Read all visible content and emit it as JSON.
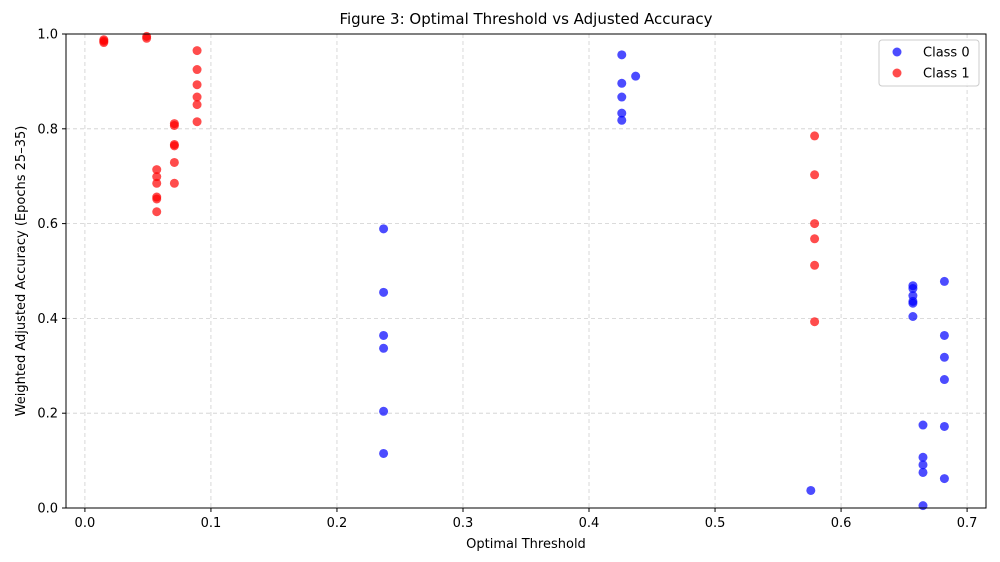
{
  "chart_data": {
    "type": "scatter",
    "title": "Figure 3: Optimal Threshold vs Adjusted Accuracy",
    "xlabel": "Optimal Threshold",
    "ylabel": "Weighted Adjusted Accuracy (Epochs 25–35)",
    "xlim": [
      -0.015,
      0.715
    ],
    "ylim": [
      0.0,
      1.0
    ],
    "xticks": [
      0.0,
      0.1,
      0.2,
      0.3,
      0.4,
      0.5,
      0.6,
      0.7
    ],
    "xtick_labels": [
      "0.0",
      "0.1",
      "0.2",
      "0.3",
      "0.4",
      "0.5",
      "0.6",
      "0.7"
    ],
    "yticks": [
      0.0,
      0.2,
      0.4,
      0.6,
      0.8,
      1.0
    ],
    "ytick_labels": [
      "0.0",
      "0.2",
      "0.4",
      "0.6",
      "0.8",
      "1.0"
    ],
    "grid": true,
    "legend_position": "top-right",
    "series": [
      {
        "name": "Class 0",
        "color": "#0000ff",
        "points": [
          [
            0.237,
            0.589
          ],
          [
            0.237,
            0.455
          ],
          [
            0.237,
            0.364
          ],
          [
            0.237,
            0.337
          ],
          [
            0.237,
            0.204
          ],
          [
            0.237,
            0.115
          ],
          [
            0.426,
            0.956
          ],
          [
            0.426,
            0.896
          ],
          [
            0.426,
            0.867
          ],
          [
            0.426,
            0.833
          ],
          [
            0.426,
            0.818
          ],
          [
            0.437,
            0.911
          ],
          [
            0.576,
            0.037
          ],
          [
            0.657,
            0.469
          ],
          [
            0.657,
            0.463
          ],
          [
            0.657,
            0.448
          ],
          [
            0.657,
            0.436
          ],
          [
            0.657,
            0.432
          ],
          [
            0.657,
            0.404
          ],
          [
            0.665,
            0.175
          ],
          [
            0.665,
            0.107
          ],
          [
            0.665,
            0.091
          ],
          [
            0.665,
            0.075
          ],
          [
            0.665,
            0.005
          ],
          [
            0.682,
            0.478
          ],
          [
            0.682,
            0.364
          ],
          [
            0.682,
            0.318
          ],
          [
            0.682,
            0.271
          ],
          [
            0.682,
            0.172
          ],
          [
            0.682,
            0.062
          ]
        ]
      },
      {
        "name": "Class 1",
        "color": "#ff0000",
        "points": [
          [
            0.015,
            0.988
          ],
          [
            0.015,
            0.985
          ],
          [
            0.015,
            0.982
          ],
          [
            0.049,
            0.995
          ],
          [
            0.049,
            0.991
          ],
          [
            0.057,
            0.714
          ],
          [
            0.057,
            0.699
          ],
          [
            0.057,
            0.685
          ],
          [
            0.057,
            0.656
          ],
          [
            0.057,
            0.652
          ],
          [
            0.057,
            0.625
          ],
          [
            0.071,
            0.811
          ],
          [
            0.071,
            0.807
          ],
          [
            0.071,
            0.767
          ],
          [
            0.071,
            0.764
          ],
          [
            0.071,
            0.729
          ],
          [
            0.071,
            0.685
          ],
          [
            0.089,
            0.965
          ],
          [
            0.089,
            0.925
          ],
          [
            0.089,
            0.893
          ],
          [
            0.089,
            0.867
          ],
          [
            0.089,
            0.851
          ],
          [
            0.089,
            0.815
          ],
          [
            0.579,
            0.785
          ],
          [
            0.579,
            0.703
          ],
          [
            0.579,
            0.6
          ],
          [
            0.579,
            0.568
          ],
          [
            0.579,
            0.512
          ],
          [
            0.579,
            0.393
          ]
        ]
      }
    ]
  }
}
